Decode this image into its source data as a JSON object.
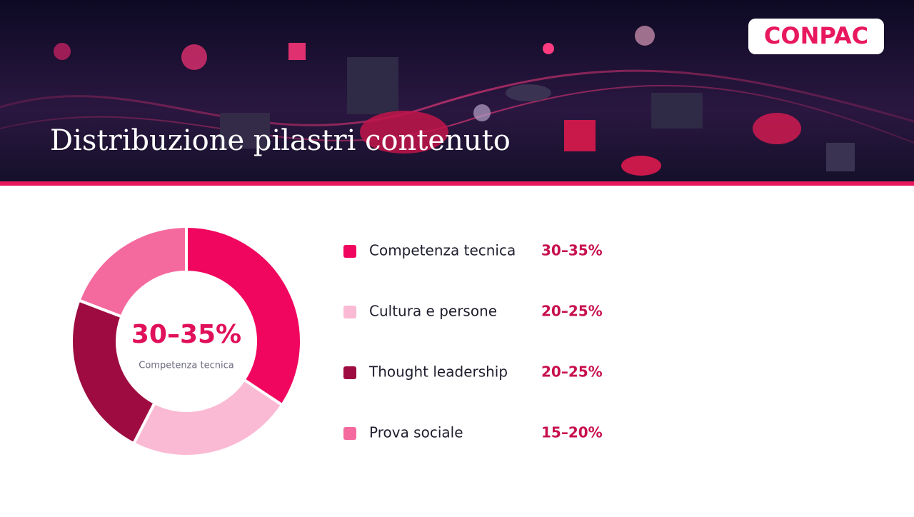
{
  "logo": "CONPAC",
  "chart_data": {
    "type": "pie",
    "donut": true,
    "title": "Distribuzione pilastri contenuto",
    "categories": [
      "Competenza tecnica",
      "Cultura e persone",
      "Thought leadership",
      "Prova sociale"
    ],
    "values": [
      34,
      23,
      23,
      19
    ],
    "value_labels": [
      "30–35%",
      "20–25%",
      "20–25%",
      "15–20%"
    ],
    "colors": [
      "#f0055f",
      "#fbbad3",
      "#9e0b40",
      "#f56a9e"
    ]
  }
}
